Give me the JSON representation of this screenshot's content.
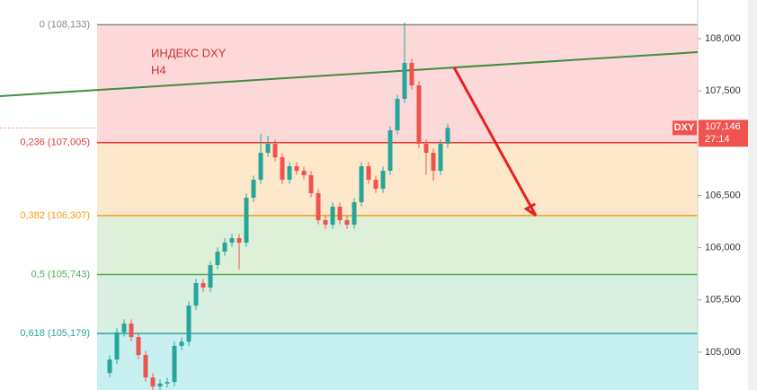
{
  "chart_data": {
    "type": "candlestick",
    "title": "ИНДЕКС DXY",
    "subtitle": "H4",
    "open": [
      104800,
      104930,
      105190,
      105274,
      105145,
      104973,
      104758,
      104672,
      104700,
      104715,
      105060,
      105100,
      105446,
      105661,
      105618,
      105833,
      105962,
      106048,
      106091,
      106048,
      106478,
      106650,
      106908,
      106994,
      106865,
      106650,
      106779,
      106736,
      106693,
      106521,
      106263,
      106220,
      106392,
      106263,
      106220,
      106435,
      106779,
      106650,
      106564,
      106736,
      107123,
      107424,
      107768,
      107553,
      106994,
      106908,
      106736,
      106994
    ],
    "high": [
      104970,
      105230,
      105314,
      105314,
      105185,
      105013,
      104798,
      104740,
      104755,
      105100,
      105140,
      105486,
      105701,
      105701,
      105873,
      106002,
      106088,
      106131,
      106131,
      106518,
      106690,
      107090,
      107070,
      107034,
      106905,
      106819,
      106819,
      106776,
      106733,
      106561,
      106303,
      106432,
      106432,
      106303,
      106475,
      106819,
      106819,
      106690,
      106776,
      107163,
      107464,
      108155,
      107808,
      107593,
      107034,
      106948,
      107034,
      107186
    ],
    "low": [
      104760,
      104890,
      105150,
      105105,
      104933,
      104718,
      104632,
      104632,
      104660,
      104675,
      105020,
      105060,
      105406,
      105578,
      105578,
      105793,
      105922,
      106008,
      105790,
      106008,
      106438,
      106610,
      106868,
      106825,
      106610,
      106610,
      106696,
      106653,
      106481,
      106223,
      106180,
      106180,
      106223,
      106180,
      106180,
      106395,
      106610,
      106524,
      106524,
      106696,
      107083,
      107384,
      107513,
      106954,
      106700,
      106640,
      106696,
      106954
    ],
    "close": [
      104930,
      105190,
      105274,
      105145,
      104973,
      104758,
      104672,
      104700,
      104715,
      105060,
      105100,
      105446,
      105661,
      105618,
      105833,
      105962,
      106048,
      106091,
      106048,
      106478,
      106650,
      106908,
      106994,
      106865,
      106650,
      106779,
      106736,
      106693,
      106521,
      106263,
      106220,
      106392,
      106263,
      106220,
      106435,
      106779,
      106650,
      106564,
      106736,
      107123,
      107424,
      107768,
      107553,
      106994,
      106908,
      106736,
      106994,
      107146
    ],
    "up_color": "#26a69a",
    "down_color": "#ef5350",
    "ylim": [
      104638,
      108370
    ],
    "yticks": [
      {
        "value": 105000,
        "label": "105,000"
      },
      {
        "value": 105500,
        "label": "105,500"
      },
      {
        "value": 106000,
        "label": "106,000"
      },
      {
        "value": 106500,
        "label": "106,500"
      },
      {
        "value": 107500,
        "label": "107,500"
      },
      {
        "value": 108000,
        "label": "108,000"
      }
    ],
    "fib_levels": [
      {
        "value": 108133,
        "label": "0 (108,133)",
        "color": "#8a8a8a",
        "zone": "#fcd8d8"
      },
      {
        "value": 107005,
        "label": "0,236 (107,005)",
        "color": "#e53935",
        "zone": "#fde8cc"
      },
      {
        "value": 106307,
        "label": "0,382 (106,307)",
        "color": "#f39c12",
        "zone": "#dff0d9"
      },
      {
        "value": 105743,
        "label": "0,5 (105,743)",
        "color": "#4caf50",
        "zone": "#d8efe2"
      },
      {
        "value": 105179,
        "label": "0,618 (105,179)",
        "color": "#26a69a",
        "zone": "#c9f0f1"
      }
    ],
    "trendline": {
      "values": [
        107450,
        107871
      ],
      "color": "#3e8e3e"
    },
    "arrow": {
      "values": [
        107725,
        106307
      ],
      "color": "#e32222"
    },
    "last_price": {
      "symbol": "DXY",
      "value": 107146,
      "label": "107,146",
      "timer": "27:14",
      "color": "#ef5350"
    }
  }
}
